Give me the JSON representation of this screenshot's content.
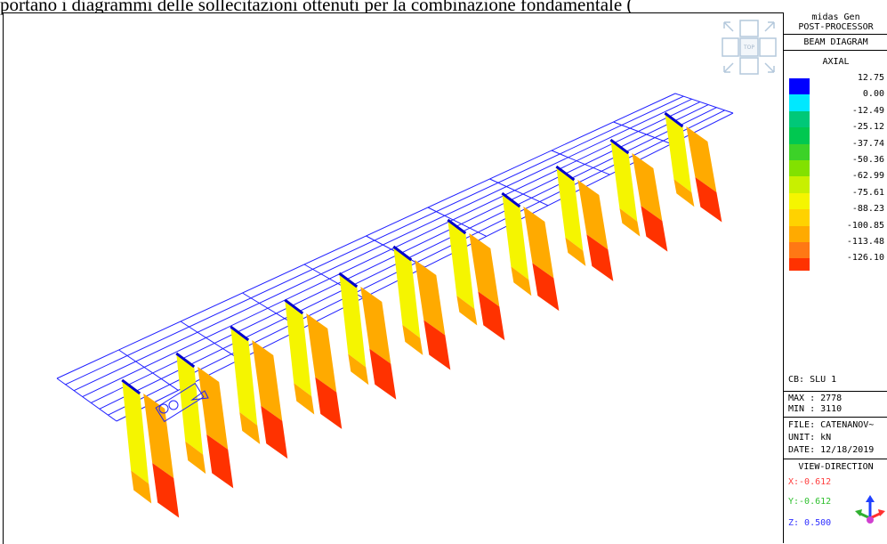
{
  "caption": "portano i diagrammi delle sollecitazioni ottenuti per la combinazione fondamentale (",
  "navcube": {
    "center_label": "TOP",
    "icon": "view-cube-icon"
  },
  "panel": {
    "app_name": "midas Gen",
    "module": "POST-PROCESSOR",
    "diagram_type": "BEAM DIAGRAM",
    "component": "AXIAL",
    "legend": [
      {
        "value": "12.75",
        "color": "#0000ff"
      },
      {
        "value": "0.00",
        "color": "#00e8ff"
      },
      {
        "value": "-12.49",
        "color": "#00c878"
      },
      {
        "value": "-25.12",
        "color": "#00c850"
      },
      {
        "value": "-37.74",
        "color": "#3cd228"
      },
      {
        "value": "-50.36",
        "color": "#82e100"
      },
      {
        "value": "-62.99",
        "color": "#c8f000"
      },
      {
        "value": "-75.61",
        "color": "#f5f500"
      },
      {
        "value": "-88.23",
        "color": "#ffd200"
      },
      {
        "value": "-100.85",
        "color": "#ffaa00"
      },
      {
        "value": "-113.48",
        "color": "#ff7814"
      },
      {
        "value": "-126.10",
        "color": "#ff3200"
      }
    ],
    "combination": "CB: SLU 1",
    "max": "MAX : 2778",
    "min": "MIN : 3110",
    "file": "FILE: CATENANOV~",
    "unit": "UNIT: kN",
    "date": "DATE: 12/18/2019",
    "view_direction_title": "VIEW-DIRECTION",
    "x": "X:-0.612",
    "y": "Y:-0.612",
    "z": "Z: 0.500",
    "x_color": "#ff4040",
    "y_color": "#30c030",
    "z_color": "#3030ff"
  },
  "colors": {
    "mesh": "#2020ff",
    "beam": "#0000cc",
    "dia_yellow": "#f5f500",
    "dia_orange": "#ffaa00",
    "dia_red": "#ff3200"
  }
}
